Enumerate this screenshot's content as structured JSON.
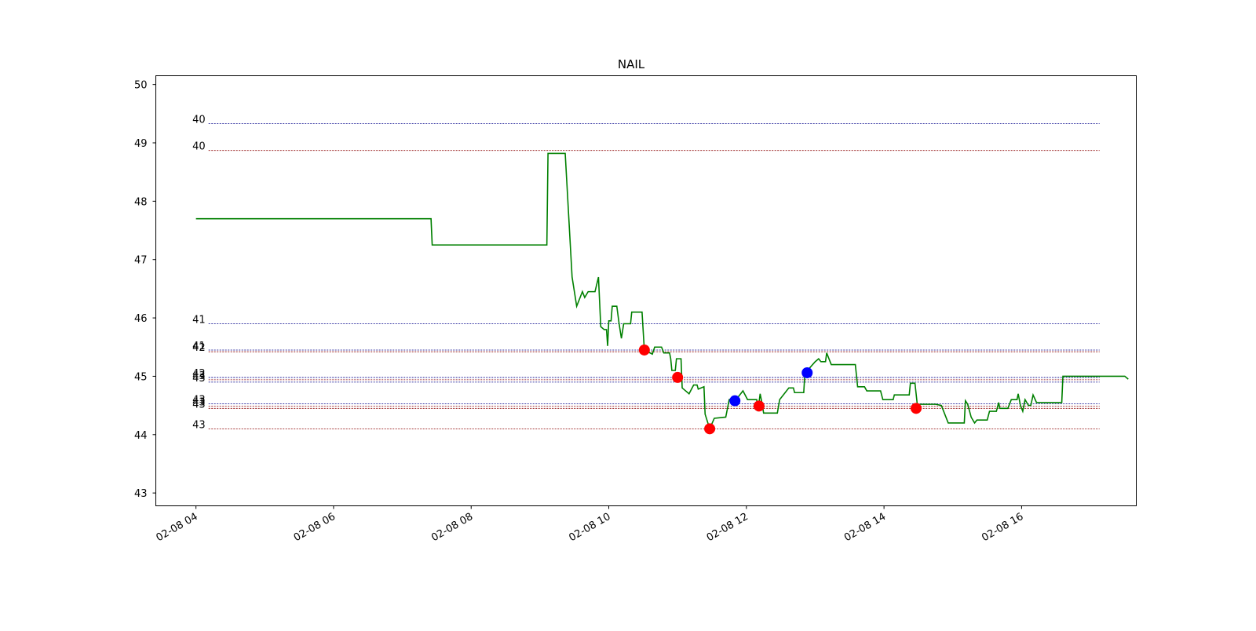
{
  "chart_data": {
    "type": "line",
    "title": "NAIL",
    "xlabel": "",
    "ylabel": "",
    "x_range": [
      "02-08 03:25",
      "02-08 17:40"
    ],
    "ylim": [
      42.78,
      50.15
    ],
    "x_ticks": [
      "02-08 04",
      "02-08 06",
      "02-08 08",
      "02-08 10",
      "02-08 12",
      "02-08 14",
      "02-08 16"
    ],
    "y_ticks": [
      43,
      44,
      45,
      46,
      47,
      48,
      49,
      50
    ],
    "grid": false,
    "legend": "none",
    "series": [
      {
        "color": "#008000",
        "points": [
          [
            "02-08 04:00",
            47.7
          ],
          [
            "02-08 07:25",
            47.7
          ],
          [
            "02-08 07:26",
            47.25
          ],
          [
            "02-08 09:06",
            47.25
          ],
          [
            "02-08 09:07",
            48.82
          ],
          [
            "02-08 09:22",
            48.82
          ],
          [
            "02-08 09:28",
            46.7
          ],
          [
            "02-08 09:32",
            46.2
          ],
          [
            "02-08 09:37",
            46.45
          ],
          [
            "02-08 09:39",
            46.35
          ],
          [
            "02-08 09:42",
            46.45
          ],
          [
            "02-08 09:48",
            46.45
          ],
          [
            "02-08 09:51",
            46.7
          ],
          [
            "02-08 09:53",
            45.85
          ],
          [
            "02-08 09:56",
            45.8
          ],
          [
            "02-08 09:58",
            45.8
          ],
          [
            "02-08 09:59",
            45.52
          ],
          [
            "02-08 10:00",
            45.95
          ],
          [
            "02-08 10:02",
            45.95
          ],
          [
            "02-08 10:03",
            46.2
          ],
          [
            "02-08 10:07",
            46.2
          ],
          [
            "02-08 10:09",
            45.9
          ],
          [
            "02-08 10:11",
            45.65
          ],
          [
            "02-08 10:13",
            45.9
          ],
          [
            "02-08 10:19",
            45.9
          ],
          [
            "02-08 10:20",
            46.1
          ],
          [
            "02-08 10:29",
            46.1
          ],
          [
            "02-08 10:31",
            45.45
          ],
          [
            "02-08 10:38",
            45.38
          ],
          [
            "02-08 10:40",
            45.5
          ],
          [
            "02-08 10:46",
            45.5
          ],
          [
            "02-08 10:48",
            45.4
          ],
          [
            "02-08 10:53",
            45.4
          ],
          [
            "02-08 10:54",
            45.3
          ],
          [
            "02-08 10:55",
            45.1
          ],
          [
            "02-08 10:58",
            45.1
          ],
          [
            "02-08 10:59",
            45.3
          ],
          [
            "02-08 11:03",
            45.3
          ],
          [
            "02-08 11:04",
            44.8
          ],
          [
            "02-08 11:10",
            44.7
          ],
          [
            "02-08 11:14",
            44.85
          ],
          [
            "02-08 11:17",
            44.85
          ],
          [
            "02-08 11:18",
            44.78
          ],
          [
            "02-08 11:23",
            44.82
          ],
          [
            "02-08 11:24",
            44.35
          ],
          [
            "02-08 11:28",
            44.1
          ],
          [
            "02-08 11:32",
            44.28
          ],
          [
            "02-08 11:42",
            44.3
          ],
          [
            "02-08 11:45",
            44.6
          ],
          [
            "02-08 11:53",
            44.65
          ],
          [
            "02-08 11:57",
            44.75
          ],
          [
            "02-08 12:01",
            44.6
          ],
          [
            "02-08 12:09",
            44.6
          ],
          [
            "02-08 12:10",
            44.4
          ],
          [
            "02-08 12:12",
            44.7
          ],
          [
            "02-08 12:14",
            44.5
          ],
          [
            "02-08 12:15",
            44.37
          ],
          [
            "02-08 12:27",
            44.37
          ],
          [
            "02-08 12:29",
            44.6
          ],
          [
            "02-08 12:33",
            44.7
          ],
          [
            "02-08 12:37",
            44.8
          ],
          [
            "02-08 12:41",
            44.8
          ],
          [
            "02-08 12:42",
            44.72
          ],
          [
            "02-08 12:50",
            44.72
          ],
          [
            "02-08 12:51",
            45.05
          ],
          [
            "02-08 13:00",
            45.25
          ],
          [
            "02-08 13:03",
            45.3
          ],
          [
            "02-08 13:05",
            45.25
          ],
          [
            "02-08 13:09",
            45.25
          ],
          [
            "02-08 13:10",
            45.4
          ],
          [
            "02-08 13:14",
            45.2
          ],
          [
            "02-08 13:35",
            45.2
          ],
          [
            "02-08 13:37",
            44.82
          ],
          [
            "02-08 13:43",
            44.82
          ],
          [
            "02-08 13:45",
            44.75
          ],
          [
            "02-08 13:57",
            44.75
          ],
          [
            "02-08 13:59",
            44.6
          ],
          [
            "02-08 14:08",
            44.6
          ],
          [
            "02-08 14:09",
            44.68
          ],
          [
            "02-08 14:22",
            44.68
          ],
          [
            "02-08 14:23",
            44.88
          ],
          [
            "02-08 14:27",
            44.88
          ],
          [
            "02-08 14:29",
            44.52
          ],
          [
            "02-08 14:45",
            44.52
          ],
          [
            "02-08 14:50",
            44.5
          ],
          [
            "02-08 14:56",
            44.2
          ],
          [
            "02-08 15:10",
            44.2
          ],
          [
            "02-08 15:11",
            44.58
          ],
          [
            "02-08 15:13",
            44.52
          ],
          [
            "02-08 15:16",
            44.3
          ],
          [
            "02-08 15:19",
            44.2
          ],
          [
            "02-08 15:21",
            44.25
          ],
          [
            "02-08 15:30",
            44.25
          ],
          [
            "02-08 15:32",
            44.4
          ],
          [
            "02-08 15:38",
            44.4
          ],
          [
            "02-08 15:40",
            44.55
          ],
          [
            "02-08 15:41",
            44.45
          ],
          [
            "02-08 15:48",
            44.45
          ],
          [
            "02-08 15:51",
            44.6
          ],
          [
            "02-08 15:56",
            44.6
          ],
          [
            "02-08 15:57",
            44.7
          ],
          [
            "02-08 15:59",
            44.5
          ],
          [
            "02-08 16:01",
            44.4
          ],
          [
            "02-08 16:03",
            44.6
          ],
          [
            "02-08 16:06",
            44.5
          ],
          [
            "02-08 16:08",
            44.5
          ],
          [
            "02-08 16:10",
            44.68
          ],
          [
            "02-08 16:13",
            44.55
          ],
          [
            "02-08 16:35",
            44.55
          ],
          [
            "02-08 16:36",
            45.0
          ],
          [
            "02-08 17:30",
            45.0
          ],
          [
            "02-08 17:33",
            44.95
          ]
        ]
      }
    ],
    "markers": [
      {
        "x": "02-08 10:31",
        "y": 45.45,
        "color": "#ff0000"
      },
      {
        "x": "02-08 11:00",
        "y": 44.98,
        "color": "#ff0000"
      },
      {
        "x": "02-08 11:28",
        "y": 44.1,
        "color": "#ff0000"
      },
      {
        "x": "02-08 11:50",
        "y": 44.58,
        "color": "#0000ff"
      },
      {
        "x": "02-08 12:11",
        "y": 44.49,
        "color": "#ff0000"
      },
      {
        "x": "02-08 12:53",
        "y": 45.06,
        "color": "#0000ff"
      },
      {
        "x": "02-08 14:28",
        "y": 44.45,
        "color": "#ff0000"
      }
    ],
    "reference_lines": [
      {
        "y": 49.33,
        "label": "40",
        "color": "#00008b"
      },
      {
        "y": 48.87,
        "label": "40",
        "color": "#8b0000"
      },
      {
        "y": 45.9,
        "label": "41",
        "color": "#00008b"
      },
      {
        "y": 45.45,
        "label": "41",
        "color": "#00008b"
      },
      {
        "y": 45.42,
        "label": "42",
        "color": "#8b0000"
      },
      {
        "y": 44.98,
        "label": "42",
        "color": "#00008b"
      },
      {
        "y": 44.94,
        "label": "43",
        "color": "#8b0000"
      },
      {
        "y": 44.9,
        "label": "43",
        "color": "#00008b"
      },
      {
        "y": 44.53,
        "label": "43",
        "color": "#00008b"
      },
      {
        "y": 44.49,
        "label": "43",
        "color": "#8b0000"
      },
      {
        "y": 44.45,
        "label": "43",
        "color": "#8b0000"
      },
      {
        "y": 44.1,
        "label": "43",
        "color": "#8b0000"
      }
    ]
  }
}
